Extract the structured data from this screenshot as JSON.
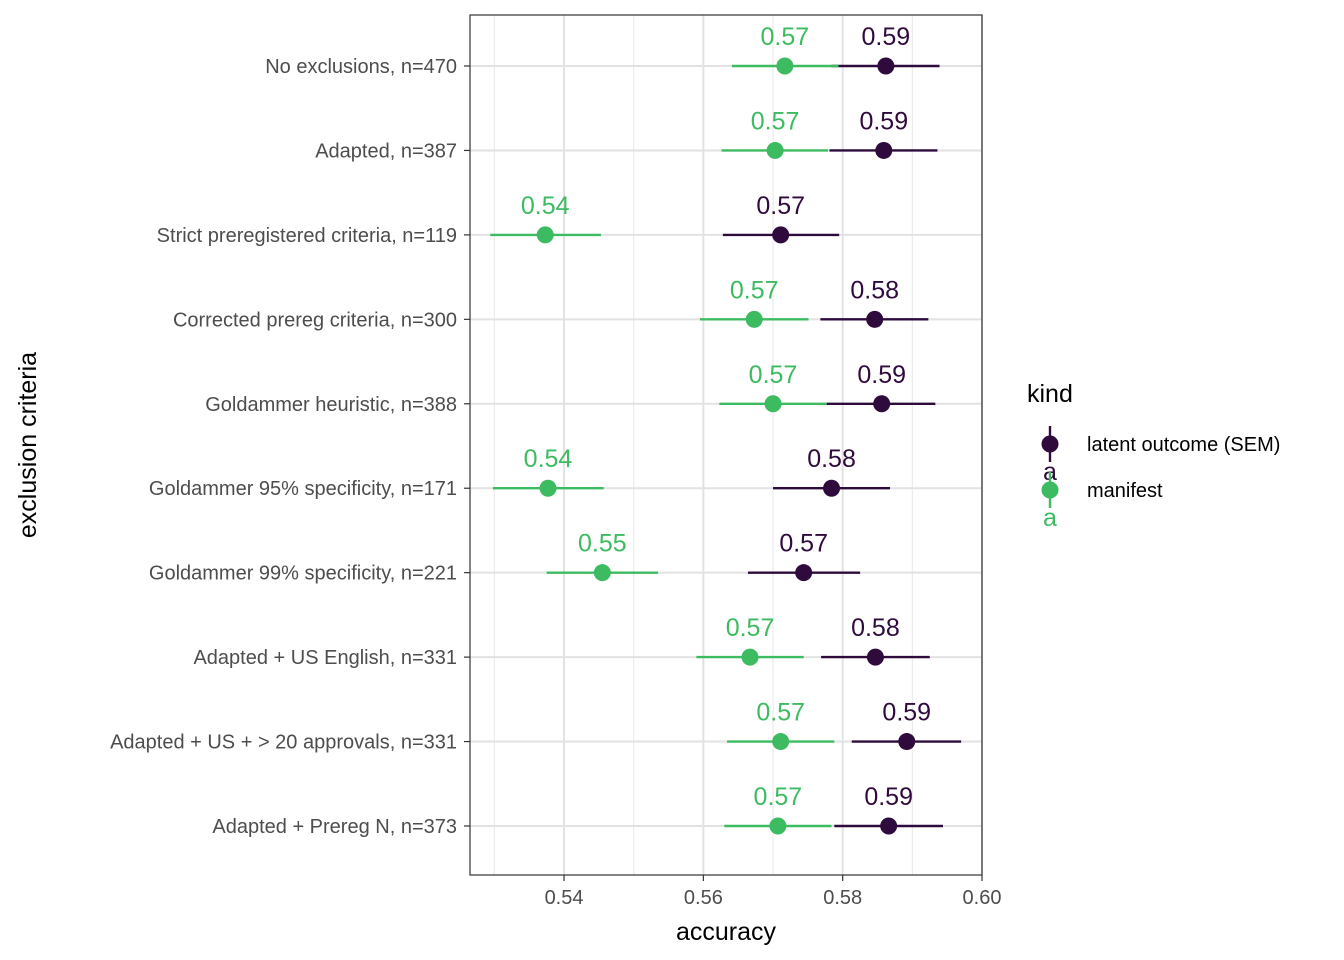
{
  "chart_data": {
    "type": "scatter",
    "xlabel": "accuracy",
    "ylabel": "exclusion criteria",
    "xlim": [
      0.5265,
      0.6
    ],
    "x_ticks": [
      0.54,
      0.56,
      0.58,
      0.6
    ],
    "x_tick_labels": [
      "0.54",
      "0.56",
      "0.58",
      "0.60"
    ],
    "grid": true,
    "legend_position": "right",
    "legend": {
      "title": "kind",
      "key_glyph_text": "a",
      "entries": [
        {
          "name": "latent outcome (SEM)",
          "color": "#2f0a3d"
        },
        {
          "name": "manifest",
          "color": "#3dbb61"
        }
      ]
    },
    "categories": [
      "No exclusions, n=470",
      "Adapted, n=387",
      "Strict preregistered criteria, n=119",
      "Corrected prereg criteria, n=300",
      "Goldammer heuristic, n=388",
      "Goldammer 95% specificity, n=171",
      "Goldammer 99% specificity, n=221",
      "Adapted + US English, n=331",
      "Adapted + US + > 20 approvals, n=331",
      "Adapted + Prereg N, n=373"
    ],
    "series": [
      {
        "name": "latent outcome (SEM)",
        "color": "#2f0a3d",
        "values": [
          0.5862,
          0.5859,
          0.5711,
          0.5846,
          0.5856,
          0.5784,
          0.5744,
          0.5847,
          0.5892,
          0.5866
        ],
        "lower": [
          0.5784,
          0.5781,
          0.5628,
          0.5768,
          0.5777,
          0.57,
          0.5664,
          0.5769,
          0.5813,
          0.5788
        ],
        "upper": [
          0.5939,
          0.5936,
          0.5795,
          0.5923,
          0.5933,
          0.5868,
          0.5825,
          0.5925,
          0.597,
          0.5944
        ],
        "labels": [
          "0.59",
          "0.59",
          "0.57",
          "0.58",
          "0.59",
          "0.58",
          "0.57",
          "0.58",
          "0.59",
          "0.59"
        ]
      },
      {
        "name": "manifest",
        "color": "#3dbb61",
        "values": [
          0.5717,
          0.5703,
          0.5373,
          0.5673,
          0.57,
          0.5377,
          0.5455,
          0.5667,
          0.5711,
          0.5707
        ],
        "lower": [
          0.5641,
          0.5626,
          0.5294,
          0.5595,
          0.5623,
          0.5298,
          0.5375,
          0.559,
          0.5634,
          0.563
        ],
        "upper": [
          0.5794,
          0.5779,
          0.5453,
          0.5751,
          0.5777,
          0.5457,
          0.5535,
          0.5744,
          0.5788,
          0.5784
        ],
        "labels": [
          "0.57",
          "0.57",
          "0.54",
          "0.57",
          "0.57",
          "0.54",
          "0.55",
          "0.57",
          "0.57",
          "0.57"
        ]
      }
    ]
  }
}
